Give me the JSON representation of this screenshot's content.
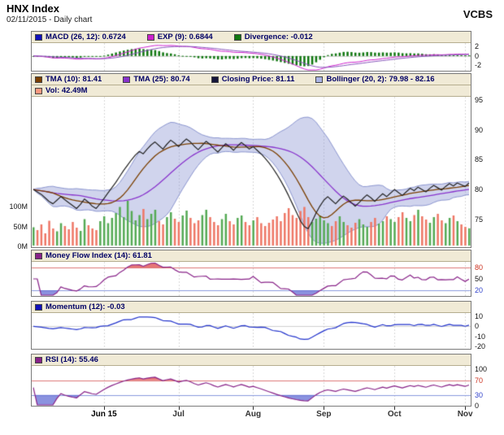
{
  "header": {
    "title": "HNX Index",
    "subtitle": "02/11/2015 - Daily chart",
    "brand": "VCBS"
  },
  "legends": {
    "macd": [
      {
        "color": "#1111bb",
        "label": "MACD (26, 12): 0.6724"
      },
      {
        "color": "#cc22cc",
        "label": "EXP (9): 0.6844"
      },
      {
        "color": "#117711",
        "label": "Divergence: -0.012"
      }
    ],
    "main": [
      {
        "color": "#7b3f00",
        "label": "TMA (10): 81.41"
      },
      {
        "color": "#8833cc",
        "label": "TMA (25): 80.74"
      },
      {
        "color": "#15153a",
        "label": "Closing Price: 81.11"
      },
      {
        "color": "#aab4e6",
        "label": "Bollinger (20, 2): 79.98 - 82.16"
      }
    ],
    "vol": [
      {
        "color": "#ff9980",
        "label": "Vol: 42.49M"
      }
    ],
    "mfi": [
      {
        "color": "#882288",
        "label": "Money Flow Index (14): 61.81"
      }
    ],
    "momentum": [
      {
        "color": "#1111bb",
        "label": "Momentum (12): -0.03"
      }
    ],
    "rsi": [
      {
        "color": "#882288",
        "label": "RSI (14): 55.46"
      }
    ]
  },
  "chart_data": {
    "type": "line",
    "title": "HNX Index",
    "date": "02/11/2015",
    "timeframe": "Daily chart",
    "x": {
      "tick_labels": [
        "Jun 15",
        "Jul",
        "Aug",
        "Sep",
        "Oct",
        "Nov"
      ],
      "tick_indices": [
        18,
        37,
        56,
        74,
        92,
        110
      ],
      "points": 112
    },
    "series": {
      "close": [
        80.0,
        79.6,
        79.2,
        78.6,
        78.0,
        77.6,
        78.2,
        78.8,
        78.3,
        77.8,
        77.3,
        76.8,
        77.5,
        78.4,
        77.9,
        77.2,
        76.8,
        77.6,
        78.5,
        79.4,
        80.3,
        81.2,
        82.2,
        83.2,
        84.1,
        85.0,
        85.8,
        86.4,
        86.0,
        86.8,
        87.5,
        88.0,
        87.4,
        86.8,
        87.6,
        88.3,
        87.8,
        87.2,
        87.9,
        88.5,
        88.0,
        87.3,
        86.7,
        87.4,
        88.1,
        87.6,
        86.9,
        86.3,
        87.0,
        87.7,
        87.2,
        86.6,
        87.3,
        87.9,
        87.4,
        86.8,
        87.2,
        86.6,
        86.0,
        85.3,
        84.5,
        83.6,
        82.6,
        81.5,
        80.3,
        79.0,
        77.6,
        76.2,
        74.8,
        73.8,
        73.4,
        74.6,
        76.0,
        77.2,
        78.2,
        78.8,
        78.2,
        77.6,
        78.3,
        78.9,
        78.4,
        77.8,
        77.2,
        77.8,
        78.5,
        79.1,
        78.6,
        78.0,
        78.7,
        79.3,
        78.8,
        79.4,
        80.0,
        79.5,
        79.0,
        79.6,
        80.2,
        79.8,
        80.4,
        80.0,
        79.6,
        80.2,
        80.7,
        80.3,
        79.9,
        80.5,
        81.0,
        80.6,
        81.1,
        80.8,
        80.5,
        81.11
      ],
      "volume_m": [
        45,
        38,
        52,
        30,
        61,
        42,
        35,
        55,
        48,
        40,
        58,
        44,
        36,
        65,
        50,
        42,
        38,
        60,
        72,
        55,
        68,
        80,
        95,
        70,
        110,
        85,
        62,
        75,
        90,
        65,
        78,
        88,
        60,
        52,
        70,
        82,
        66,
        58,
        74,
        86,
        68,
        55,
        62,
        75,
        88,
        70,
        58,
        50,
        65,
        78,
        60,
        52,
        68,
        74,
        58,
        50,
        62,
        70,
        55,
        48,
        56,
        64,
        72,
        60,
        80,
        92,
        75,
        68,
        85,
        95,
        70,
        58,
        66,
        74,
        62,
        55,
        48,
        60,
        72,
        58,
        50,
        44,
        56,
        65,
        52,
        46,
        58,
        68,
        54,
        60,
        72,
        65,
        58,
        70,
        82,
        68,
        60,
        75,
        88,
        72,
        64,
        56,
        70,
        78,
        62,
        55,
        68,
        74,
        60,
        52,
        46,
        42.49
      ]
    },
    "panels": [
      {
        "id": "macd",
        "indicators": [
          "MACD (26, 12)",
          "EXP (9)",
          "Divergence"
        ],
        "last_values": {
          "macd": 0.6724,
          "exp": 0.6844,
          "divergence": -0.012
        },
        "y_ticks": [
          2,
          0,
          -2
        ],
        "y_range": [
          -3.2,
          2.8
        ]
      },
      {
        "id": "price",
        "indicators": [
          "TMA (10)",
          "TMA (25)",
          "Closing Price",
          "Bollinger (20, 2)",
          "Volume"
        ],
        "last_values": {
          "tma10": 81.41,
          "tma25": 80.74,
          "close": 81.11,
          "bollinger_low": 79.98,
          "bollinger_high": 82.16,
          "volume": "42.49M"
        },
        "y_ticks": [
          95,
          90,
          85,
          80,
          75
        ],
        "y_range": [
          70.3,
          95.6
        ],
        "volume_ticks": [
          "100M",
          "50M",
          "0M"
        ]
      },
      {
        "id": "mfi",
        "indicators": [
          "Money Flow Index (14)"
        ],
        "last_values": {
          "mfi": 61.81
        },
        "y_ticks": [
          80,
          50,
          20
        ],
        "thresholds": [
          80,
          20
        ],
        "y_range": [
          5,
          95
        ]
      },
      {
        "id": "momentum",
        "indicators": [
          "Momentum (12)"
        ],
        "last_values": {
          "momentum": -0.03
        },
        "y_ticks": [
          10,
          0,
          -10,
          -20
        ],
        "y_range": [
          -22,
          13
        ]
      },
      {
        "id": "rsi",
        "indicators": [
          "RSI (14)"
        ],
        "last_values": {
          "rsi": 55.46
        },
        "y_ticks": [
          100,
          70,
          30,
          0
        ],
        "thresholds": [
          70,
          30
        ],
        "y_range": [
          0,
          110
        ]
      }
    ],
    "colors": {
      "close": "#222222",
      "tma10": "#7b3f00",
      "tma25": "#8833cc",
      "bollinger_fill": "rgba(150,160,215,0.45)",
      "bollinger_edge": "rgba(122,134,200,0.85)",
      "volume_up": "#55aa55",
      "volume_down": "#ee7766",
      "macd_line": "#cc22cc",
      "exp_line": "#8855bb",
      "divergence_bar": "#117711",
      "mfi_line": "#882288",
      "momentum_line": "#2233cc",
      "rsi_line": "#882288",
      "overbought_line": "#dd7777",
      "oversold_line": "#8899dd",
      "overbought_fill": "rgba(220,60,60,0.7)",
      "oversold_fill": "rgba(90,100,210,0.7)",
      "grid": "#d6d6d6",
      "zero_line": "#cfcfcf"
    }
  }
}
